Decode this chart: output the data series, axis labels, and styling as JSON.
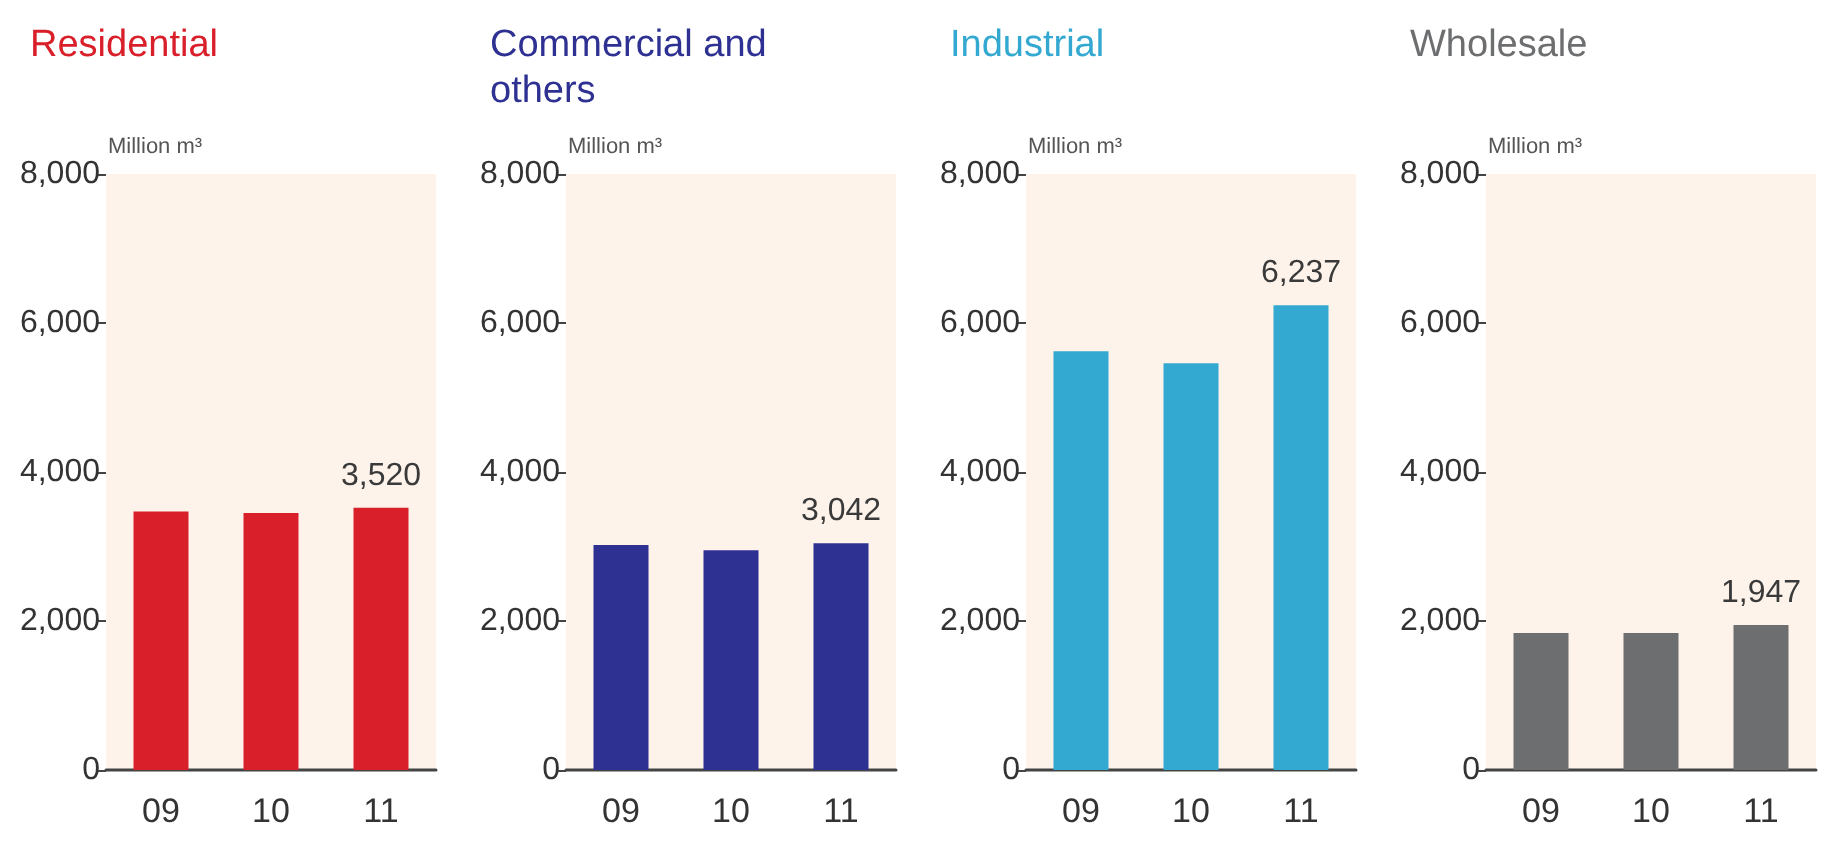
{
  "chart_data": [
    {
      "type": "bar",
      "title": "Residential",
      "ylabel": "Million m³",
      "categories": [
        "09",
        "10",
        "11"
      ],
      "series": [
        {
          "color": "#d9202a",
          "values": [
            3470,
            3450,
            3520
          ],
          "value_labels": [
            null,
            null,
            "3,520"
          ]
        }
      ],
      "ylim": [
        0,
        8000
      ],
      "yticks": [
        {
          "value": 0,
          "label": "0"
        },
        {
          "value": 2000,
          "label": "2,000"
        },
        {
          "value": 4000,
          "label": "4,000"
        },
        {
          "value": 6000,
          "label": "6,000"
        },
        {
          "value": 8000,
          "label": "8,000"
        }
      ],
      "grid": false
    },
    {
      "type": "bar",
      "title": "Commercial and others",
      "ylabel": "Million m³",
      "categories": [
        "09",
        "10",
        "11"
      ],
      "series": [
        {
          "color": "#2e3192",
          "values": [
            3020,
            2950,
            3042
          ],
          "value_labels": [
            null,
            null,
            "3,042"
          ]
        }
      ],
      "ylim": [
        0,
        8000
      ],
      "yticks": [
        {
          "value": 0,
          "label": "0"
        },
        {
          "value": 2000,
          "label": "2,000"
        },
        {
          "value": 4000,
          "label": "4,000"
        },
        {
          "value": 6000,
          "label": "6,000"
        },
        {
          "value": 8000,
          "label": "8,000"
        }
      ],
      "grid": false
    },
    {
      "type": "bar",
      "title": "Industrial",
      "ylabel": "Million m³",
      "categories": [
        "09",
        "10",
        "11"
      ],
      "series": [
        {
          "color": "#33a8d0",
          "values": [
            5620,
            5460,
            6237
          ],
          "value_labels": [
            null,
            null,
            "6,237"
          ]
        }
      ],
      "ylim": [
        0,
        8000
      ],
      "yticks": [
        {
          "value": 0,
          "label": "0"
        },
        {
          "value": 2000,
          "label": "2,000"
        },
        {
          "value": 4000,
          "label": "4,000"
        },
        {
          "value": 6000,
          "label": "6,000"
        },
        {
          "value": 8000,
          "label": "8,000"
        }
      ],
      "grid": false
    },
    {
      "type": "bar",
      "title": "Wholesale",
      "ylabel": "Million m³",
      "categories": [
        "09",
        "10",
        "11"
      ],
      "series": [
        {
          "color": "#6d6e70",
          "values": [
            1840,
            1840,
            1947
          ],
          "value_labels": [
            null,
            null,
            "1,947"
          ]
        }
      ],
      "ylim": [
        0,
        8000
      ],
      "yticks": [
        {
          "value": 0,
          "label": "0"
        },
        {
          "value": 2000,
          "label": "2,000"
        },
        {
          "value": 4000,
          "label": "4,000"
        },
        {
          "value": 6000,
          "label": "6,000"
        },
        {
          "value": 8000,
          "label": "8,000"
        }
      ],
      "grid": false
    }
  ]
}
